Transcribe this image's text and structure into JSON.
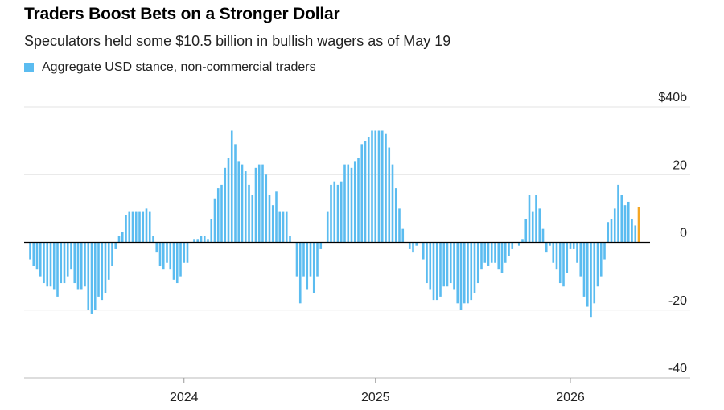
{
  "title": "Traders Boost Bets on a Stronger Dollar",
  "subtitle": "Speculators held some $10.5 billion in bullish wagers as of May 19",
  "legend": {
    "label": "Aggregate USD stance, non-commercial traders",
    "color": "#5bbcf0"
  },
  "colors": {
    "bar": "#5bbcf0",
    "highlight": "#f5a623",
    "grid": "#e3e3e3",
    "zero": "#000000"
  },
  "chart_data": {
    "type": "bar",
    "ylim": [
      -40,
      40
    ],
    "yticks": [
      {
        "value": 40,
        "label": "$40b"
      },
      {
        "value": 20,
        "label": "20"
      },
      {
        "value": 0,
        "label": "0"
      },
      {
        "value": -20,
        "label": "-20"
      },
      {
        "value": -40,
        "label": "-40"
      }
    ],
    "xticks": [
      {
        "index": 45,
        "label": "2024"
      },
      {
        "index": 101,
        "label": "2025"
      },
      {
        "index": 158,
        "label": "2026"
      }
    ],
    "highlight_last": true,
    "values": [
      -5,
      -7,
      -8,
      -10,
      -12,
      -13,
      -13,
      -14,
      -16,
      -12,
      -12,
      -10,
      -8,
      -12,
      -14,
      -14,
      -13,
      -20,
      -21,
      -20,
      -16,
      -17,
      -15,
      -11,
      -7,
      -2,
      2,
      3,
      8,
      9,
      9,
      9,
      9,
      9,
      10,
      9,
      2,
      -3,
      -7,
      -8,
      -6,
      -8,
      -11,
      -12,
      -10,
      -6,
      -6,
      0,
      1,
      1,
      2,
      2,
      1,
      7,
      13,
      16,
      17,
      22,
      25,
      33,
      29,
      24,
      23,
      21,
      17,
      14,
      22,
      23,
      23,
      20,
      14,
      11,
      15,
      9,
      9,
      9,
      2,
      0,
      -10,
      -18,
      -10,
      -14,
      -10,
      -15,
      -10,
      -2,
      0,
      9,
      17,
      18,
      17,
      18,
      23,
      23,
      22,
      24,
      25,
      29,
      30,
      31,
      33,
      33,
      33,
      33,
      32,
      28,
      23,
      16,
      10,
      4,
      0,
      -2,
      -3,
      -1,
      0,
      -5,
      -12,
      -14,
      -17,
      -17,
      -16,
      -13,
      -13,
      -12,
      -14,
      -18,
      -20,
      -18,
      -18,
      -17,
      -15,
      -12,
      -8,
      -6,
      -7,
      -6,
      -6,
      -8,
      -9,
      -6,
      -4,
      -2,
      0,
      -1,
      1,
      7,
      14,
      9,
      14,
      10,
      4,
      -3,
      -1,
      -6,
      -8,
      -12,
      -13,
      -9,
      -2,
      -2,
      -6,
      -10,
      -16,
      -19,
      -22,
      -18,
      -13,
      -10,
      -5,
      6,
      7,
      10,
      17,
      14,
      11,
      12,
      7,
      5,
      10.5
    ]
  }
}
